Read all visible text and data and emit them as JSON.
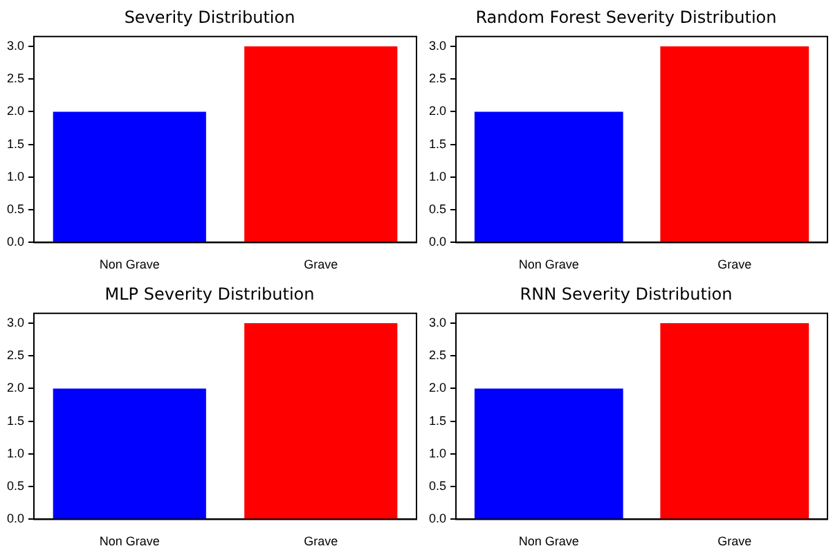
{
  "chart_data": [
    {
      "type": "bar",
      "title": "Severity Distribution",
      "categories": [
        "Non Grave",
        "Grave"
      ],
      "values": [
        2,
        3
      ],
      "colors": [
        "#0000ff",
        "#ff0000"
      ],
      "ylim": [
        0,
        3.15
      ],
      "yticks": [
        {
          "value": 0,
          "label": "0.0"
        },
        {
          "value": 0.5,
          "label": "0.5"
        },
        {
          "value": 1,
          "label": "1.0"
        },
        {
          "value": 1.5,
          "label": "1.5"
        },
        {
          "value": 2,
          "label": "2.0"
        },
        {
          "value": 2.5,
          "label": "2.5"
        },
        {
          "value": 3,
          "label": "3.0"
        }
      ],
      "grid": false
    },
    {
      "type": "bar",
      "title": "Random Forest Severity Distribution",
      "categories": [
        "Non Grave",
        "Grave"
      ],
      "values": [
        2,
        3
      ],
      "colors": [
        "#0000ff",
        "#ff0000"
      ],
      "ylim": [
        0,
        3.15
      ],
      "yticks": [
        {
          "value": 0,
          "label": "0.0"
        },
        {
          "value": 0.5,
          "label": "0.5"
        },
        {
          "value": 1,
          "label": "1.0"
        },
        {
          "value": 1.5,
          "label": "1.5"
        },
        {
          "value": 2,
          "label": "2.0"
        },
        {
          "value": 2.5,
          "label": "2.5"
        },
        {
          "value": 3,
          "label": "3.0"
        }
      ],
      "grid": false
    },
    {
      "type": "bar",
      "title": "MLP Severity Distribution",
      "categories": [
        "Non Grave",
        "Grave"
      ],
      "values": [
        2,
        3
      ],
      "colors": [
        "#0000ff",
        "#ff0000"
      ],
      "ylim": [
        0,
        3.15
      ],
      "yticks": [
        {
          "value": 0,
          "label": "0.0"
        },
        {
          "value": 0.5,
          "label": "0.5"
        },
        {
          "value": 1,
          "label": "1.0"
        },
        {
          "value": 1.5,
          "label": "1.5"
        },
        {
          "value": 2,
          "label": "2.0"
        },
        {
          "value": 2.5,
          "label": "2.5"
        },
        {
          "value": 3,
          "label": "3.0"
        }
      ],
      "grid": false
    },
    {
      "type": "bar",
      "title": "RNN Severity Distribution",
      "categories": [
        "Non Grave",
        "Grave"
      ],
      "values": [
        2,
        3
      ],
      "colors": [
        "#0000ff",
        "#ff0000"
      ],
      "ylim": [
        0,
        3.15
      ],
      "yticks": [
        {
          "value": 0,
          "label": "0.0"
        },
        {
          "value": 0.5,
          "label": "0.5"
        },
        {
          "value": 1,
          "label": "1.0"
        },
        {
          "value": 1.5,
          "label": "1.5"
        },
        {
          "value": 2,
          "label": "2.0"
        },
        {
          "value": 2.5,
          "label": "2.5"
        },
        {
          "value": 3,
          "label": "3.0"
        }
      ],
      "grid": false
    }
  ]
}
